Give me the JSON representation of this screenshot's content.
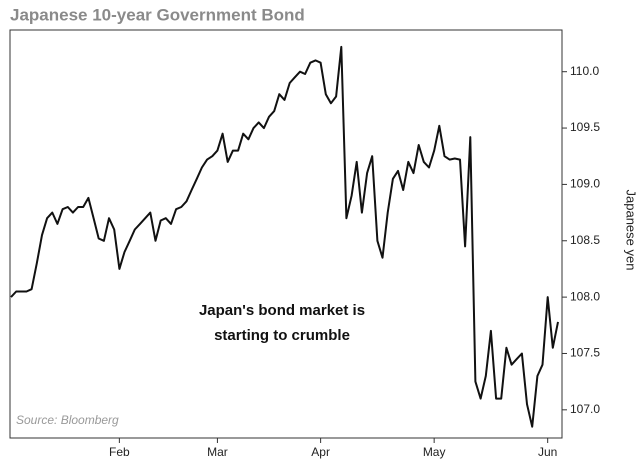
{
  "chart_data": {
    "type": "line",
    "title": "Japanese 10-year Government Bond",
    "y_axis_label": "Japanese yen",
    "source": "Source: Bloomberg",
    "annotation": [
      "Japan's bond market is",
      "starting to crumble"
    ],
    "color": "#111111",
    "categories": [
      null,
      null,
      null,
      null,
      null,
      null,
      null,
      null,
      null,
      null,
      null,
      null,
      null,
      null,
      null,
      null,
      null,
      null,
      null,
      null,
      null,
      "Feb",
      null,
      null,
      null,
      null,
      null,
      null,
      null,
      null,
      null,
      null,
      null,
      null,
      null,
      null,
      null,
      null,
      null,
      null,
      "Mar",
      null,
      null,
      null,
      null,
      null,
      null,
      null,
      null,
      null,
      null,
      null,
      null,
      null,
      null,
      null,
      null,
      null,
      null,
      null,
      "Apr",
      null,
      null,
      null,
      null,
      null,
      null,
      null,
      null,
      null,
      null,
      null,
      null,
      null,
      null,
      null,
      null,
      null,
      null,
      null,
      null,
      null,
      "May",
      null,
      null,
      null,
      null,
      null,
      null,
      null,
      null,
      null,
      null,
      null,
      null,
      null,
      null,
      null,
      null,
      null,
      null,
      null,
      null,
      null,
      "Jun",
      null,
      null
    ],
    "values": [
      108.0,
      108.05,
      108.05,
      108.05,
      108.07,
      108.3,
      108.55,
      108.7,
      108.75,
      108.65,
      108.78,
      108.8,
      108.75,
      108.8,
      108.8,
      108.88,
      108.7,
      108.52,
      108.5,
      108.7,
      108.6,
      108.25,
      108.4,
      108.5,
      108.6,
      108.65,
      108.7,
      108.75,
      108.5,
      108.68,
      108.7,
      108.65,
      108.78,
      108.8,
      108.85,
      108.95,
      109.05,
      109.15,
      109.22,
      109.25,
      109.3,
      109.45,
      109.2,
      109.3,
      109.3,
      109.45,
      109.4,
      109.5,
      109.55,
      109.5,
      109.6,
      109.65,
      109.8,
      109.75,
      109.9,
      109.95,
      110.0,
      109.98,
      110.08,
      110.1,
      110.08,
      109.8,
      109.72,
      109.78,
      110.22,
      108.7,
      108.9,
      109.2,
      108.75,
      109.1,
      109.25,
      108.5,
      108.35,
      108.75,
      109.05,
      109.12,
      108.95,
      109.2,
      109.1,
      109.35,
      109.2,
      109.15,
      109.3,
      109.52,
      109.25,
      109.22,
      109.23,
      109.22,
      108.45,
      109.42,
      107.25,
      107.1,
      107.3,
      107.7,
      107.1,
      107.1,
      107.55,
      107.4,
      107.45,
      107.5,
      107.05,
      106.85,
      107.3,
      107.4,
      108.0,
      107.55,
      107.78
    ],
    "ylim": [
      106.75,
      110.37
    ],
    "yticks": [
      {
        "value": 107,
        "label": "107.0"
      },
      {
        "value": 107.5,
        "label": "107.5"
      },
      {
        "value": 108,
        "label": "108.0"
      },
      {
        "value": 108.5,
        "label": "108.5"
      },
      {
        "value": 109,
        "label": "109.0"
      },
      {
        "value": 109.5,
        "label": "109.5"
      },
      {
        "value": 110,
        "label": "110.0"
      }
    ],
    "y_axis_side": "right",
    "grid": false
  }
}
